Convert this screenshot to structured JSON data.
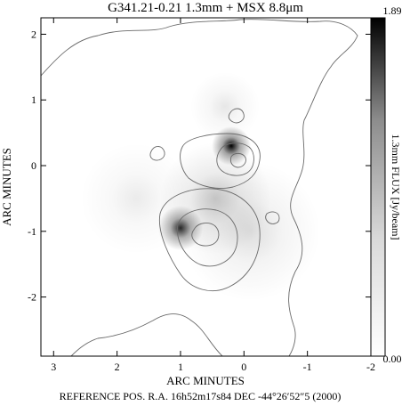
{
  "chart_data": {
    "type": "heatmap",
    "title": "G341.21-0.21   1.3mm + MSX 8.8μm",
    "xlabel": "ARC MINUTES",
    "ylabel": "ARC MINUTES",
    "footer": "REFERENCE POS.  R.A. 16h52m17s84  DEC  -44°26′52″5  (2000)",
    "xlim": [
      3.2,
      -2.0
    ],
    "ylim": [
      -2.9,
      2.25
    ],
    "x_ticks": [
      3,
      2,
      1,
      0,
      -1,
      -2
    ],
    "x_tick_labels": [
      "3",
      "2",
      "1",
      "0",
      "-1",
      "-2"
    ],
    "y_ticks": [
      2,
      1,
      0,
      -1,
      -2
    ],
    "y_tick_labels": [
      "2",
      "1",
      "0",
      "-1",
      "-2"
    ],
    "colorbar": {
      "label": "1.3mm FLUX [Jy/beam]",
      "max_label": "1.89",
      "min_label": "0.00",
      "range": [
        0.0,
        1.89
      ],
      "colormap": "grayscale, white = low, black = high"
    },
    "sources": [
      {
        "x": 0.2,
        "y": 0.3,
        "peak_flux": 1.89,
        "sigma": 0.14
      },
      {
        "x": 1.0,
        "y": -0.95,
        "peak_flux": 1.6,
        "sigma": 0.16
      },
      {
        "x": 0.45,
        "y": -0.5,
        "peak_flux": 0.4,
        "sigma": 0.4
      },
      {
        "x": -0.1,
        "y": -1.0,
        "peak_flux": 0.25,
        "sigma": 0.5
      },
      {
        "x": 0.3,
        "y": 0.9,
        "peak_flux": 0.18,
        "sigma": 0.25
      },
      {
        "x": 1.7,
        "y": -0.5,
        "peak_flux": 0.15,
        "sigma": 0.4
      }
    ],
    "contour_peaks": [
      {
        "x": 0.05,
        "y": 0.05,
        "levels": 3
      },
      {
        "x": 0.6,
        "y": -1.0,
        "levels": 3
      }
    ]
  }
}
